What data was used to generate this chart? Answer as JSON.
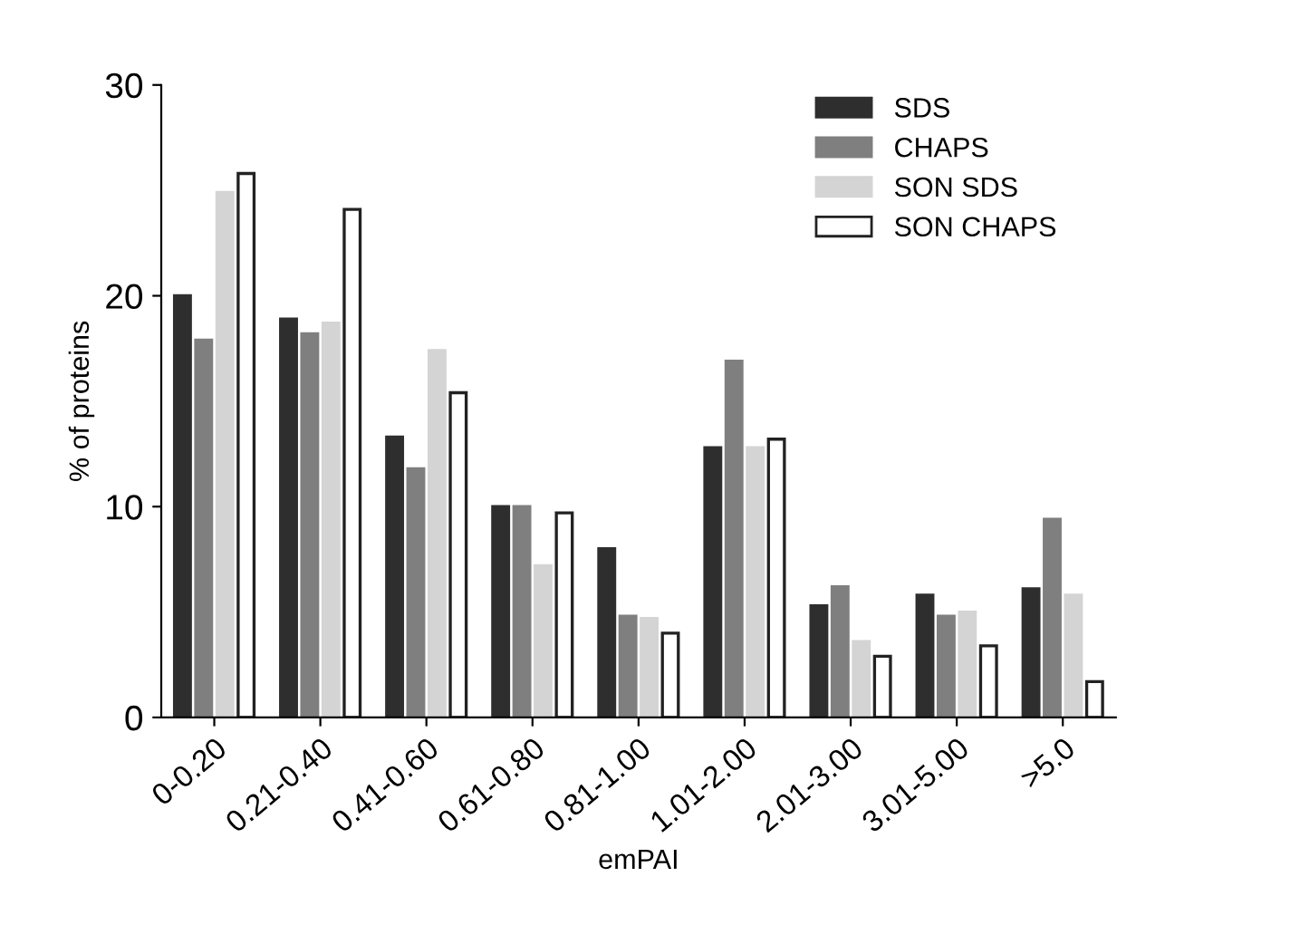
{
  "chart_data": {
    "type": "bar",
    "xlabel": "emPAI",
    "ylabel": "% of proteins",
    "categories": [
      "0-0.20",
      "0.21-0.40",
      "0.41-0.60",
      "0.61-0.80",
      "0.81-1.00",
      "1.01-2.00",
      "2.01-3.00",
      "3.01-5.00",
      ">5.0"
    ],
    "series": [
      {
        "name": "SDS",
        "color": "#2e2e2e",
        "values": [
          20,
          18.9,
          13.3,
          10,
          8.0,
          12.8,
          5.3,
          5.8,
          6.1
        ]
      },
      {
        "name": "CHAPS",
        "color": "#7f7f7f",
        "values": [
          17.9,
          18.2,
          11.8,
          10,
          4.8,
          16.9,
          6.2,
          4.8,
          9.4
        ]
      },
      {
        "name": "SON SDS",
        "color": "#d4d4d4",
        "values": [
          24.9,
          18.7,
          17.4,
          7.2,
          4.7,
          12.8,
          3.6,
          5.0,
          5.8
        ]
      },
      {
        "name": "SON CHAPS",
        "color": "#ffffff",
        "values": [
          25.8,
          24.1,
          15.4,
          9.7,
          4.0,
          13.2,
          2.9,
          3.4,
          1.7
        ]
      }
    ],
    "ylim": [
      0,
      30
    ],
    "yticks": [
      0,
      10,
      20,
      30
    ],
    "grid": false,
    "legend": "top right"
  }
}
